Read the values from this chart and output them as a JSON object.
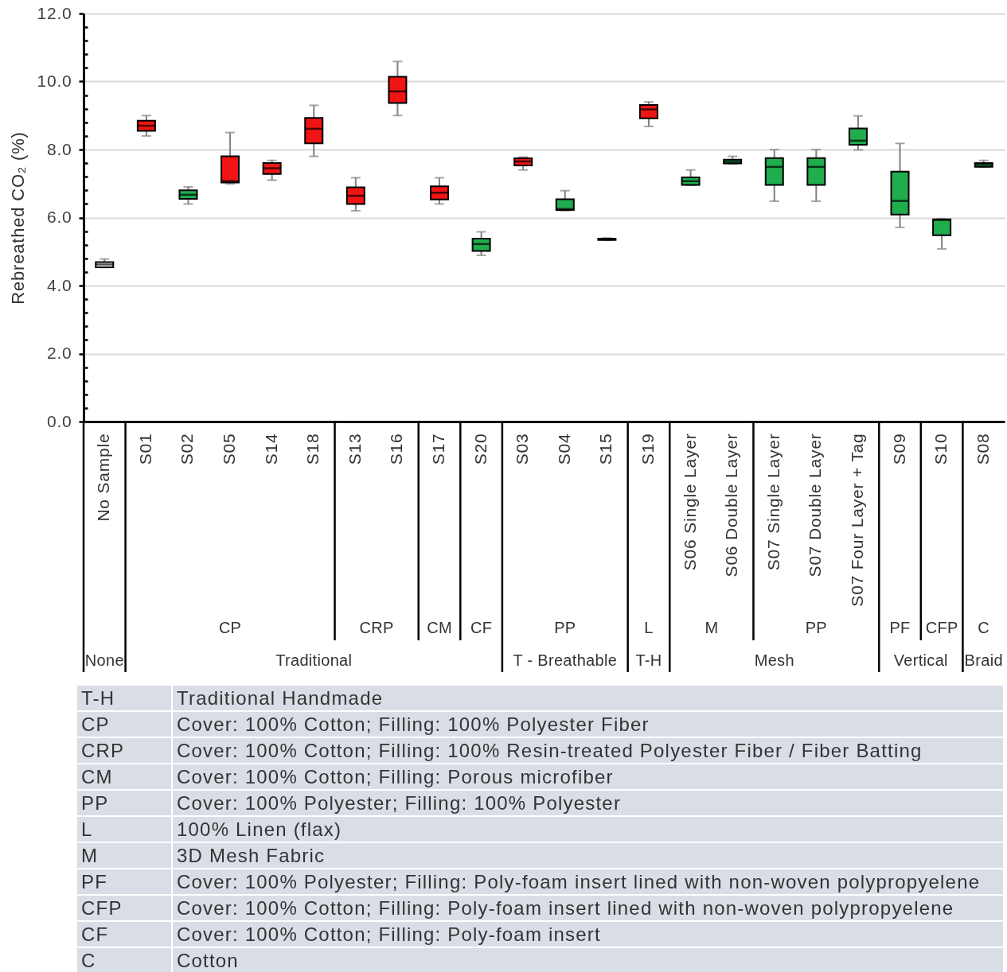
{
  "chart_data": {
    "type": "box",
    "ylabel": "Rebreathed CO₂ (%)",
    "categories": [
      "No Sample",
      "S01",
      "S02",
      "S05",
      "S14",
      "S18",
      "S13",
      "S16",
      "S17",
      "S20",
      "S03",
      "S04",
      "S15",
      "S19",
      "S06 Single Layer",
      "S06 Double Layer",
      "S07 Single Layer",
      "S07 Double Layer",
      "S07 Four Layer + Tag",
      "S09",
      "S10",
      "S08"
    ],
    "boxes": [
      {
        "low": 4.53,
        "q1": 4.54,
        "median": 4.62,
        "q3": 4.69,
        "high": 4.78
      },
      {
        "low": 8.4,
        "q1": 8.55,
        "median": 8.7,
        "q3": 8.85,
        "high": 9.0
      },
      {
        "low": 6.4,
        "q1": 6.55,
        "median": 6.67,
        "q3": 6.8,
        "high": 6.9
      },
      {
        "low": 6.99,
        "q1": 7.03,
        "median": 7.07,
        "q3": 7.8,
        "high": 8.5
      },
      {
        "low": 7.1,
        "q1": 7.28,
        "median": 7.45,
        "q3": 7.6,
        "high": 7.68
      },
      {
        "low": 7.8,
        "q1": 8.18,
        "median": 8.61,
        "q3": 8.93,
        "high": 9.3
      },
      {
        "low": 6.2,
        "q1": 6.4,
        "median": 6.64,
        "q3": 6.89,
        "high": 7.17
      },
      {
        "low": 9.0,
        "q1": 9.37,
        "median": 9.71,
        "q3": 10.14,
        "high": 10.59
      },
      {
        "low": 6.4,
        "q1": 6.53,
        "median": 6.73,
        "q3": 6.92,
        "high": 7.17
      },
      {
        "low": 4.89,
        "q1": 5.02,
        "median": 5.22,
        "q3": 5.38,
        "high": 5.58
      },
      {
        "low": 7.4,
        "q1": 7.53,
        "median": 7.65,
        "q3": 7.74,
        "high": 7.78
      },
      {
        "low": 6.2,
        "q1": 6.22,
        "median": 6.25,
        "q3": 6.54,
        "high": 6.79
      },
      {
        "low": 5.33,
        "q1": 5.34,
        "median": 5.36,
        "q3": 5.38,
        "high": 5.4
      },
      {
        "low": 8.68,
        "q1": 8.92,
        "median": 9.18,
        "q3": 9.31,
        "high": 9.4
      },
      {
        "low": 6.95,
        "q1": 6.96,
        "median": 7.07,
        "q3": 7.18,
        "high": 7.4
      },
      {
        "low": 7.58,
        "q1": 7.59,
        "median": 7.64,
        "q3": 7.7,
        "high": 7.8
      },
      {
        "low": 6.48,
        "q1": 6.96,
        "median": 7.49,
        "q3": 7.75,
        "high": 8.0
      },
      {
        "low": 6.48,
        "q1": 6.96,
        "median": 7.49,
        "q3": 7.75,
        "high": 8.0
      },
      {
        "low": 7.99,
        "q1": 8.14,
        "median": 8.26,
        "q3": 8.62,
        "high": 8.99
      },
      {
        "low": 5.71,
        "q1": 6.09,
        "median": 6.49,
        "q3": 7.35,
        "high": 8.18
      },
      {
        "low": 5.08,
        "q1": 5.48,
        "median": 5.93,
        "q3": 5.95,
        "high": 5.96
      },
      {
        "low": 7.48,
        "q1": 7.49,
        "median": 7.55,
        "q3": 7.6,
        "high": 7.68
      }
    ],
    "colors": [
      "#ffffff",
      "#f01414",
      "#20ad4e",
      "#f01414",
      "#f01414",
      "#f01414",
      "#f01414",
      "#f01414",
      "#f01414",
      "#20ad4e",
      "#f01414",
      "#20ad4e",
      "#20ad4e",
      "#f01414",
      "#20ad4e",
      "#20ad4e",
      "#20ad4e",
      "#20ad4e",
      "#20ad4e",
      "#20ad4e",
      "#20ad4e",
      "#20ad4e"
    ],
    "ylim": [
      0,
      12
    ],
    "yticks": [
      {
        "value": 0,
        "label": "0.0"
      },
      {
        "value": 0.4,
        "label": null
      },
      {
        "value": 0.8,
        "label": null
      },
      {
        "value": 1.2,
        "label": null
      },
      {
        "value": 1.6,
        "label": null
      },
      {
        "value": 2,
        "label": "2.0"
      },
      {
        "value": 2.4,
        "label": null
      },
      {
        "value": 2.8,
        "label": null
      },
      {
        "value": 3.2,
        "label": null
      },
      {
        "value": 3.6,
        "label": null
      },
      {
        "value": 4,
        "label": "4.0"
      },
      {
        "value": 4.4,
        "label": null
      },
      {
        "value": 4.8,
        "label": null
      },
      {
        "value": 5.2,
        "label": null
      },
      {
        "value": 5.6,
        "label": null
      },
      {
        "value": 6,
        "label": "6.0"
      },
      {
        "value": 6.4,
        "label": null
      },
      {
        "value": 6.8,
        "label": null
      },
      {
        "value": 7.2,
        "label": null
      },
      {
        "value": 7.6,
        "label": null
      },
      {
        "value": 8,
        "label": "8.0"
      },
      {
        "value": 8.4,
        "label": null
      },
      {
        "value": 8.8,
        "label": null
      },
      {
        "value": 9.2,
        "label": null
      },
      {
        "value": 9.6,
        "label": null
      },
      {
        "value": 10,
        "label": "10.0"
      },
      {
        "value": 10.4,
        "label": null
      },
      {
        "value": 10.8,
        "label": null
      },
      {
        "value": 11.2,
        "label": null
      },
      {
        "value": 11.6,
        "label": null
      },
      {
        "value": 12,
        "label": "12.0"
      }
    ],
    "grid": "y",
    "annotations": [
      "CP",
      "CRP",
      "CM",
      "CF",
      "PP",
      "L",
      "M",
      "PP",
      "PF",
      "CFP",
      "C",
      "None",
      "Traditional",
      "T - Breathable",
      "T-H",
      "Mesh",
      "Vertical",
      "Braid",
      "T-H",
      "Traditional Handmade",
      "CP",
      "Cover: 100% Cotton; Filling: 100% Polyester Fiber",
      "CRP",
      "Cover: 100% Cotton; Filling: 100% Resin-treated Polyester Fiber / Fiber Batting",
      "CM",
      "Cover: 100% Cotton; Filling: Porous microfiber",
      "PP",
      "Cover: 100% Polyester; Filling: 100% Polyester",
      "L",
      "100% Linen (flax)",
      "M",
      "3D Mesh Fabric",
      "PF",
      "Cover: 100% Polyester; Filling: Poly-foam insert lined with non-woven polypropyelene",
      "CFP",
      "Cover: 100% Cotton; Filling: Poly-foam insert lined with non-woven polypropyelene",
      "CF",
      "Cover: 100% Cotton; Filling: Poly-foam insert",
      "C",
      "Cotton"
    ]
  }
}
